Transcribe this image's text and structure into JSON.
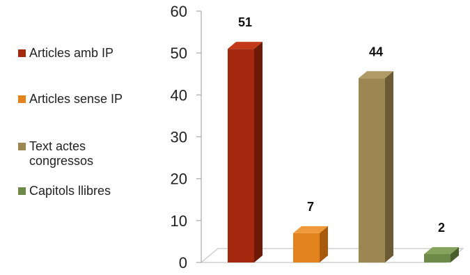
{
  "chart_data": {
    "type": "bar",
    "title": "",
    "xlabel": "",
    "ylabel": "",
    "ylim": [
      0,
      60
    ],
    "yticks": [
      0,
      10,
      20,
      30,
      40,
      50,
      60
    ],
    "legend_position": "left",
    "gridlines": false,
    "three_d": true,
    "categories": [
      "Articles amb IP",
      "Articles sense IP",
      "Text actes\ncongressos",
      "Capitols llibres"
    ],
    "values": [
      51,
      7,
      44,
      2
    ],
    "data_labels": [
      "51",
      "7",
      "44",
      "2"
    ],
    "colors": [
      {
        "front": "#a5290f",
        "side": "#6d1a08",
        "top": "#c23a19"
      },
      {
        "front": "#e3831d",
        "side": "#a85b0d",
        "top": "#ef9a3a"
      },
      {
        "front": "#9c8652",
        "side": "#6b5a33",
        "top": "#b09a66"
      },
      {
        "front": "#6e8a48",
        "side": "#4a5f2d",
        "top": "#86a25e"
      }
    ]
  }
}
